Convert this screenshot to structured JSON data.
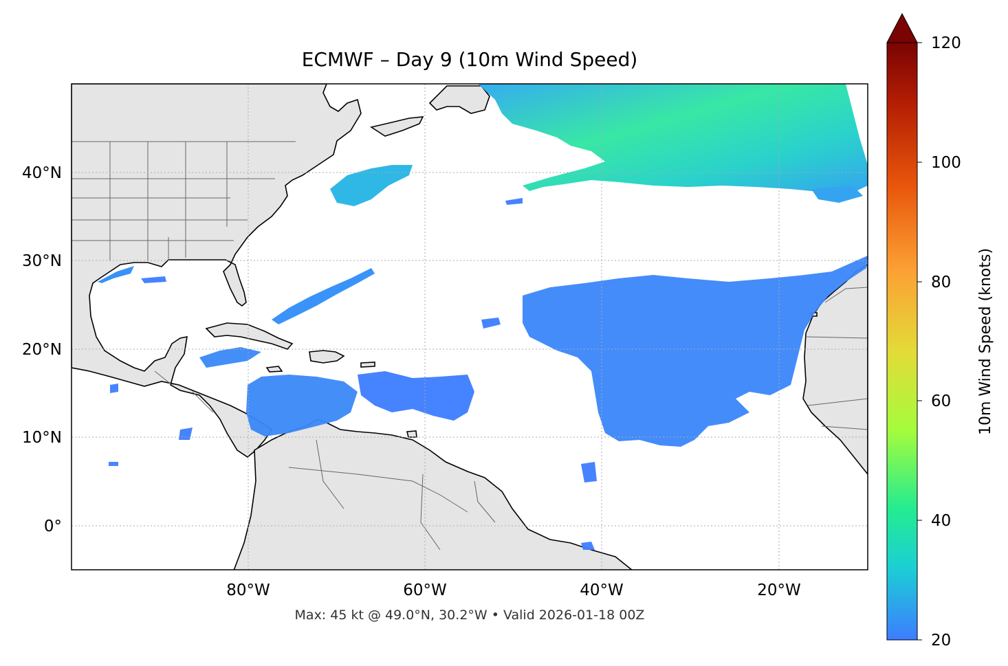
{
  "title": "ECMWF – Day 9 (10m Wind Speed)",
  "footer": "Max: 45 kt @ 49.0°N, 30.2°W • Valid 2026-01-18 00Z",
  "map": {
    "lat_ticks": [
      "40°N",
      "30°N",
      "20°N",
      "10°N",
      "0°"
    ],
    "lon_ticks": [
      "80°W",
      "60°W",
      "40°W",
      "20°W"
    ],
    "land_color": "#e5e5e5",
    "coast_color": "#000000",
    "border_color": "#666666",
    "grid": true
  },
  "colorbar": {
    "label": "10m Wind Speed (knots)",
    "ticks": [
      "20",
      "40",
      "60",
      "80",
      "100",
      "120"
    ],
    "min": 20,
    "max": 120,
    "extend": "max",
    "colormap": [
      "#3d7dff",
      "#1bcfd4",
      "#24ec90",
      "#a4fc3c",
      "#e2dc38",
      "#fca034",
      "#e8560c",
      "#b31d03",
      "#7a0403"
    ]
  }
}
